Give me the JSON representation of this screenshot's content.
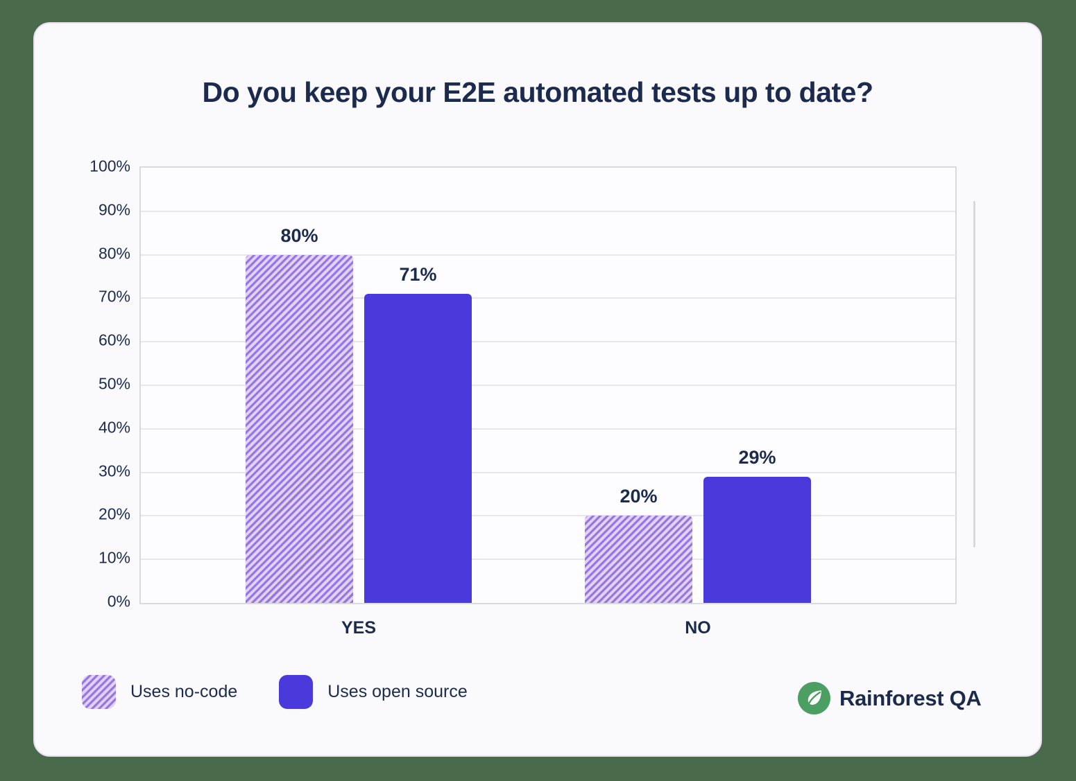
{
  "title": "Do you keep your E2E automated tests up to date?",
  "chart_data": {
    "type": "bar",
    "title": "Do you keep your E2E automated tests up to date?",
    "categories": [
      "YES",
      "NO"
    ],
    "series": [
      {
        "name": "Uses no-code",
        "style": "hatched",
        "values": [
          80,
          20
        ],
        "value_labels": [
          "80%",
          "20%"
        ]
      },
      {
        "name": "Uses open source",
        "style": "solid",
        "values": [
          71,
          29
        ],
        "value_labels": [
          "71%",
          "29%"
        ]
      }
    ],
    "xlabel": "",
    "ylabel": "",
    "ylim": [
      0,
      100
    ],
    "ytick_step": 10,
    "ytick_labels": [
      "0%",
      "10%",
      "20%",
      "30%",
      "40%",
      "50%",
      "60%",
      "70%",
      "80%",
      "90%",
      "100%"
    ],
    "grid": true,
    "legend_position": "bottom-left"
  },
  "legend": {
    "items": [
      {
        "label": "Uses no-code",
        "swatch": "hatched"
      },
      {
        "label": "Uses open source",
        "swatch": "solid"
      }
    ]
  },
  "logo": {
    "text": "Rainforest QA",
    "icon": "leaf-icon"
  },
  "colors": {
    "page_bg": "#4a6b4b",
    "card_bg": "#fafafd",
    "card_border": "#ecddf3",
    "navy_text": "#1c2b4d",
    "solid_bar": "#4b3adb",
    "hatch_bg": "#e8cef2",
    "hatch_stripe": "#8d7be5",
    "grid_line": "#e6e6eb",
    "plot_border": "#d9d9df",
    "logo_green": "#4d9e62",
    "scrollbar": "#d8d8dd"
  }
}
